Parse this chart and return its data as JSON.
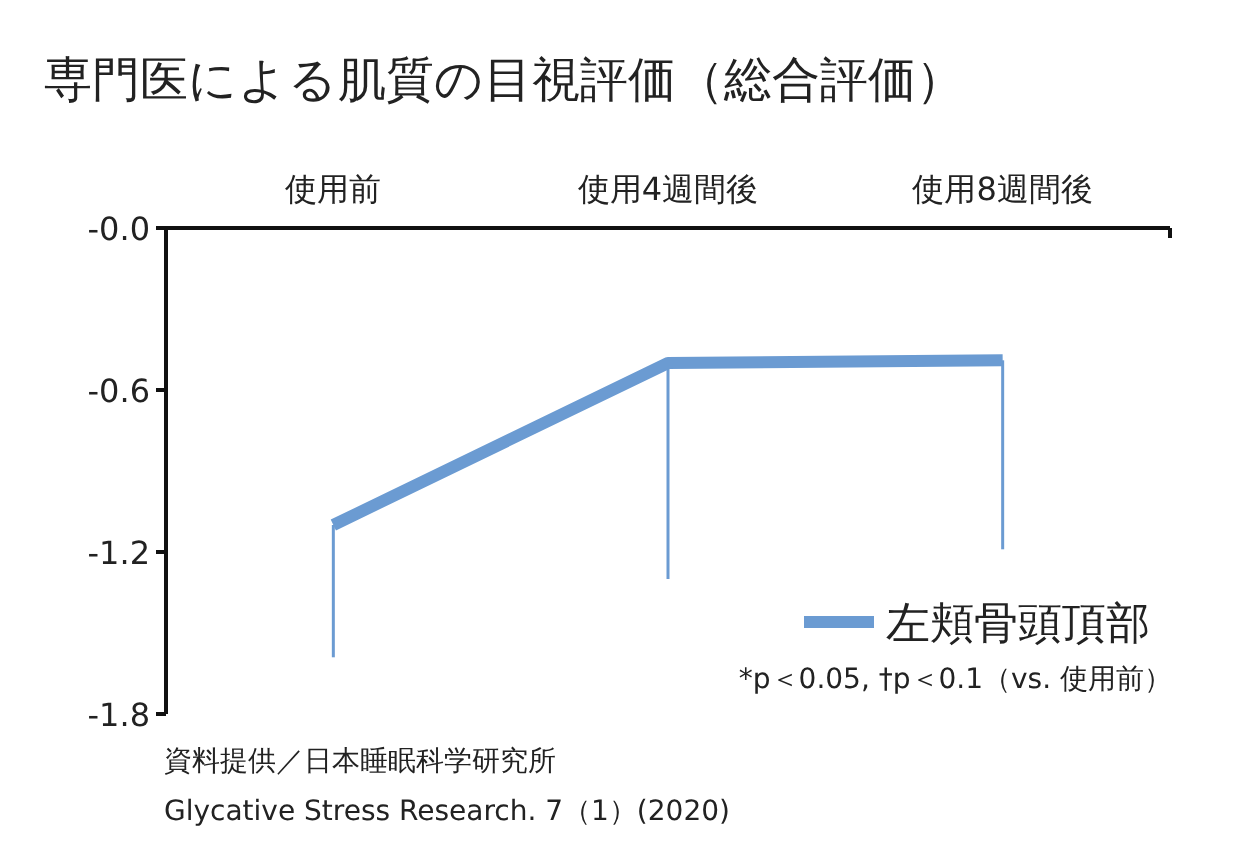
{
  "chart_data": {
    "type": "line",
    "title": "専門医による肌質の目視評価（総合評価）",
    "categories": [
      "使用前",
      "使用4週間後",
      "使用8週間後"
    ],
    "series": [
      {
        "name": "左頬骨頭頂部",
        "color": "#6b9bd2",
        "values": [
          -1.1,
          -0.5,
          -0.49
        ],
        "errors": [
          [
            -1.59,
            -1.1
          ],
          [
            -1.3,
            -0.5
          ],
          [
            -1.19,
            -0.49
          ]
        ]
      }
    ],
    "ylim": [
      -1.8,
      0
    ],
    "yticks": [
      {
        "value": 0,
        "label": "-0.0"
      },
      -0.6,
      -1.2,
      -1.8
    ],
    "legend": "bottom right",
    "grid": false,
    "annotations": [
      "*p＜0.05, †p＜0.1（vs. 使用前）",
      "資料提供／日本睡眠科学研究所",
      "Glycative Stress Research. 7（1）(2020)"
    ]
  }
}
